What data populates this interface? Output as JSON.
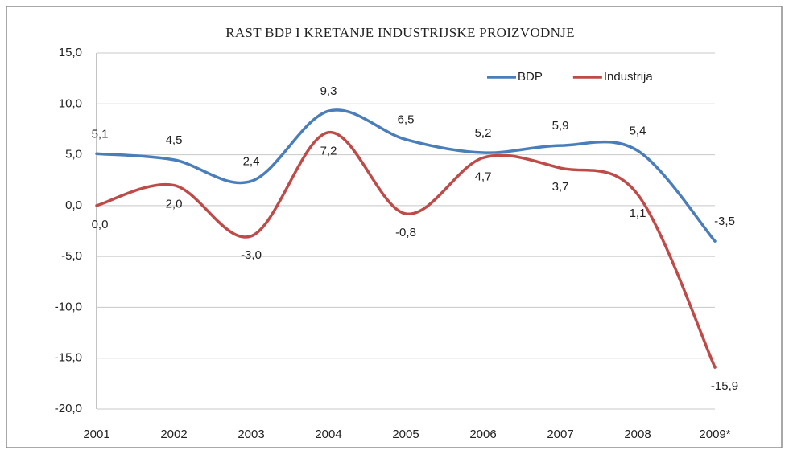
{
  "chart_data": {
    "type": "line",
    "title": "RAST BDP I KRETANJE INDUSTRIJSKE PROIZVODNJE",
    "categories": [
      "2001",
      "2002",
      "2003",
      "2004",
      "2005",
      "2006",
      "2007",
      "2008",
      "2009*"
    ],
    "series": [
      {
        "name": "BDP",
        "color": "#4a7ebb",
        "values": [
          5.1,
          4.5,
          2.4,
          9.3,
          6.5,
          5.2,
          5.9,
          5.4,
          -3.5
        ],
        "value_labels": [
          "5,1",
          "4,5",
          "2,4",
          "9,3",
          "6,5",
          "5,2",
          "5,9",
          "5,4",
          "-3,5"
        ]
      },
      {
        "name": "Industrija",
        "color": "#be4b48",
        "values": [
          0.0,
          2.0,
          -3.0,
          7.2,
          -0.8,
          4.7,
          3.7,
          1.1,
          -15.9
        ],
        "value_labels": [
          "0,0",
          "2,0",
          "-3,0",
          "7,2",
          "-0,8",
          "4,7",
          "3,7",
          "1,1",
          "-15,9"
        ]
      }
    ],
    "ylim": [
      -20,
      15
    ],
    "yticks": [
      {
        "value": -20,
        "label": "-20,0"
      },
      {
        "value": -15,
        "label": "-15,0"
      },
      {
        "value": -10,
        "label": "-10,0"
      },
      {
        "value": -5,
        "label": "-5,0"
      },
      {
        "value": 0,
        "label": "0,0"
      },
      {
        "value": 5,
        "label": "5,0"
      },
      {
        "value": 10,
        "label": "10,0"
      },
      {
        "value": 15,
        "label": "15,0"
      }
    ],
    "grid": true,
    "legend": "top-right"
  }
}
